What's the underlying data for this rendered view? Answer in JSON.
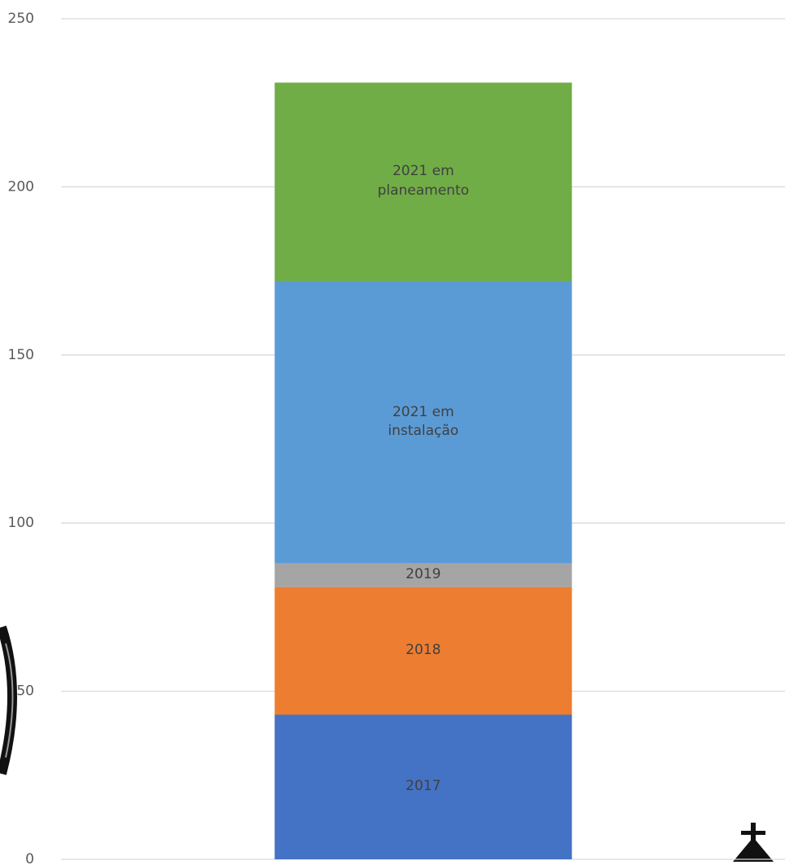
{
  "chart_data": {
    "type": "bar",
    "stacked": true,
    "categories": [
      null
    ],
    "series": [
      {
        "name": "2017",
        "color": "#4472c4",
        "values": [
          43
        ]
      },
      {
        "name": "2018",
        "color": "#ed7d31",
        "values": [
          38
        ]
      },
      {
        "name": "2019",
        "color": "#a5a5a5",
        "values": [
          7
        ]
      },
      {
        "name": "2021 em instalação",
        "color": "#5b9bd5",
        "values": [
          84
        ]
      },
      {
        "name": "2021 em planeamento",
        "color": "#70ad47",
        "values": [
          59
        ]
      }
    ],
    "ylim": [
      0,
      250
    ],
    "yticks": [
      0,
      50,
      100,
      150,
      200,
      250
    ],
    "grid": true
  }
}
